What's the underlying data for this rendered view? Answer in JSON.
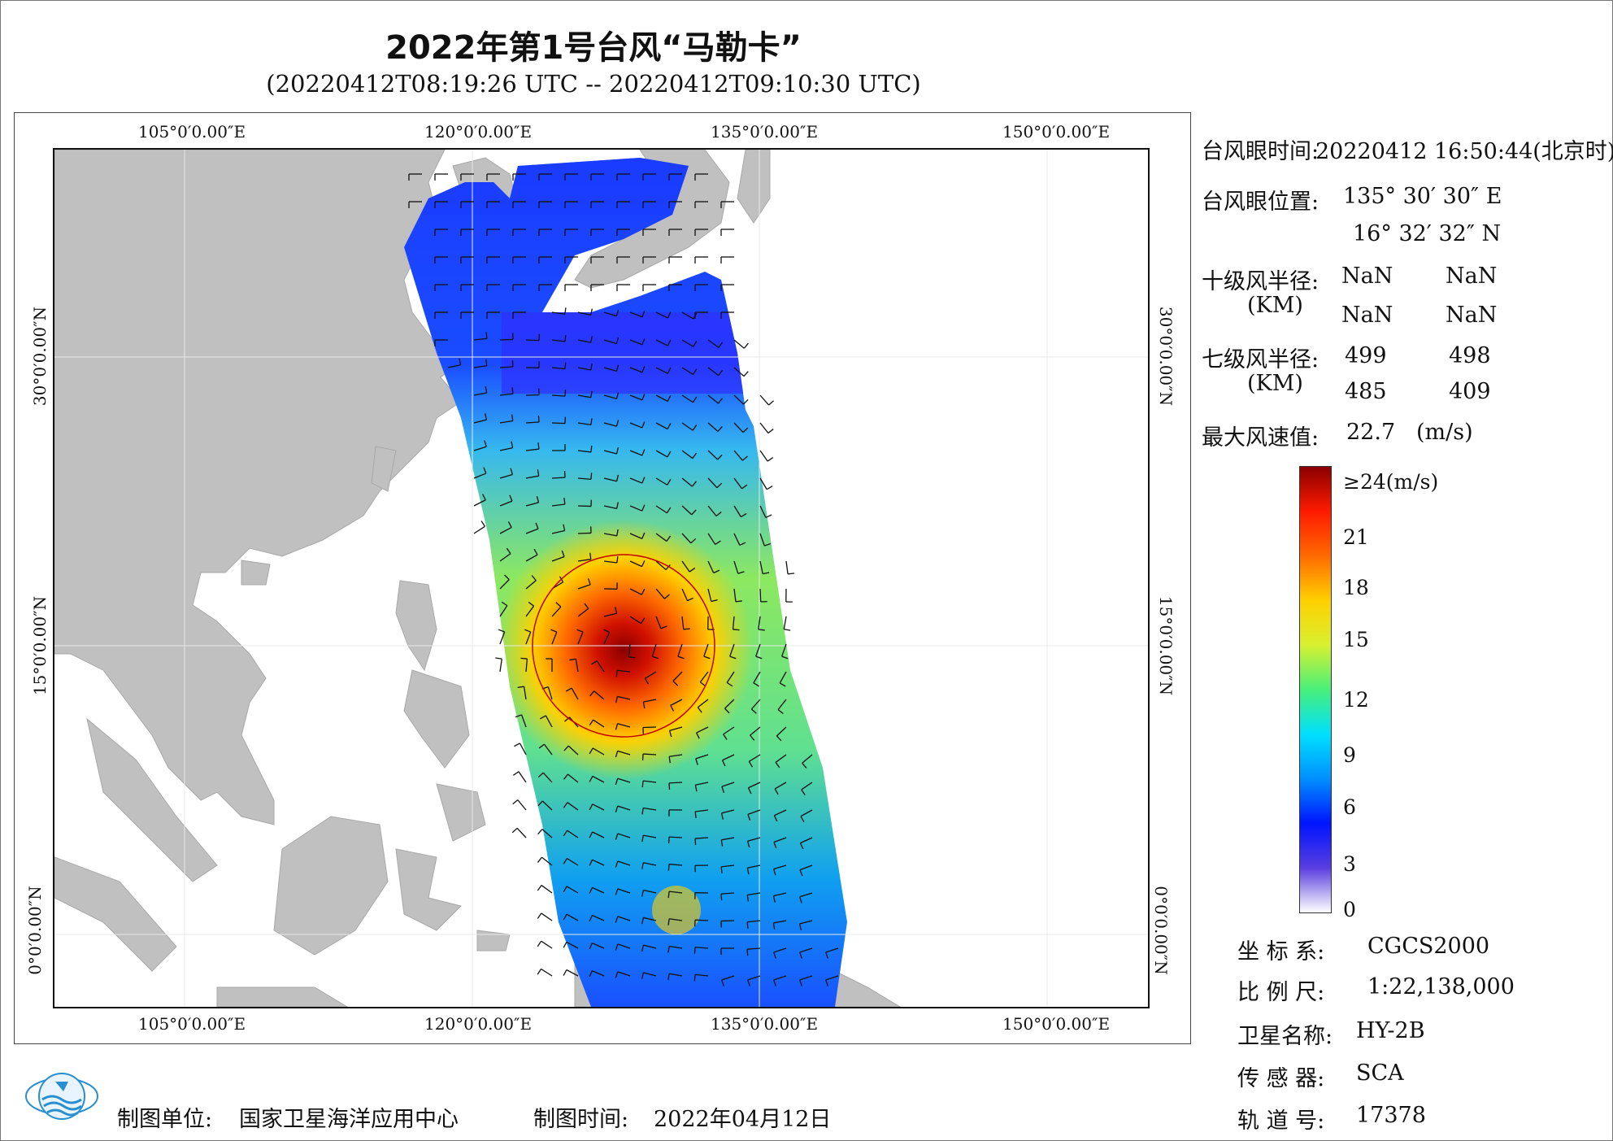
{
  "title": "2022年第1号台风“马勒卡”",
  "subtitle": "(20220412T08:19:26 UTC -- 20220412T09:10:30 UTC)",
  "axes": {
    "lon_labels": [
      "105°0′0.00″E",
      "120°0′0.00″E",
      "135°0′0.00″E",
      "150°0′0.00″E"
    ],
    "lat_labels": [
      "30°0′0.00″N",
      "15°0′0.00″N",
      "0°0′0.00″N"
    ]
  },
  "info": {
    "eye_time_label": "台风眼时间:",
    "eye_time_value": "20220412 16:50:44(北京时)",
    "eye_pos_label": "台风眼位置:",
    "eye_lon": "135° 30′ 30″ E",
    "eye_lat": "16° 32′ 32″ N",
    "r10_label": "十级风半径:",
    "r10_unit": "(KM)",
    "r10": [
      "NaN",
      "NaN",
      "NaN",
      "NaN"
    ],
    "r7_label": "七级风半径:",
    "r7_unit": "(KM)",
    "r7": [
      "499",
      "498",
      "485",
      "409"
    ],
    "max_wind_label": "最大风速值:",
    "max_wind_value": "22.7",
    "max_wind_unit": "(m/s)"
  },
  "colorbar": {
    "ticks": [
      "≥24(m/s)",
      "21",
      "18",
      "15",
      "12",
      "9",
      "6",
      "3",
      "0"
    ],
    "colors": [
      "#ffffff",
      "#5a3ee0",
      "#0014ff",
      "#0090ff",
      "#00e0ff",
      "#48f07a",
      "#d8f030",
      "#ffd000",
      "#ff6a00",
      "#ff1a00",
      "#8b0000"
    ]
  },
  "meta": {
    "crs_label": "坐 标 系:",
    "crs_value": "CGCS2000",
    "scale_label": "比 例 尺:",
    "scale_value": "1:22,138,000",
    "sat_label": "卫星名称:",
    "sat_value": "HY-2B",
    "sensor_label": "传 感 器:",
    "sensor_value": "SCA",
    "orbit_label": "轨 道 号:",
    "orbit_value": "17378"
  },
  "footer": {
    "maker_label": "制图单位:",
    "maker_value": "国家卫星海洋应用中心",
    "date_label": "制图时间:",
    "date_value": "2022年04月12日"
  },
  "logo_text": "国家卫星海洋应用中心"
}
